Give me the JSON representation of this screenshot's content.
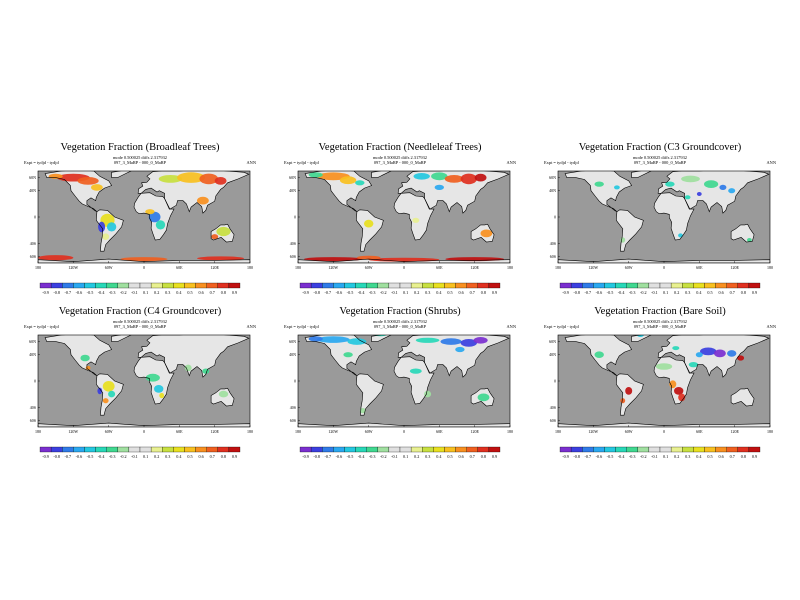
{
  "map_data": {
    "panel_meta": {
      "mode_line": "mode 0.500025 diffs 2.317932",
      "expt": "Expt = tydjd - tydjd",
      "run": "097_3_MaRP - 000_0_MaRP",
      "season": "ANN"
    },
    "lat_labels": [
      "60N",
      "40N",
      "0",
      "40S",
      "60S"
    ],
    "lon_labels": [
      "180",
      "120W",
      "60W",
      "0",
      "60E",
      "120E",
      "180"
    ],
    "colorbar": {
      "ticks": [
        "-0.9",
        "-0.8",
        "-0.7",
        "-0.6",
        "-0.5",
        "-0.4",
        "-0.3",
        "-0.2",
        "-0.1",
        "0.1",
        "0.2",
        "0.3",
        "0.4",
        "0.5",
        "0.6",
        "0.7",
        "0.8",
        "0.9"
      ],
      "colors": [
        "#7b2fd0",
        "#3b3fe0",
        "#2f7be8",
        "#2aa8f0",
        "#24c8e0",
        "#28d8b8",
        "#40d890",
        "#a0e0a0",
        "#e0e0e0",
        "#e0e0e0",
        "#e8f090",
        "#c8e040",
        "#e8e020",
        "#f8c020",
        "#f89020",
        "#f06020",
        "#e03020",
        "#c01010"
      ]
    },
    "colors": {
      "ocean": "#9a9a9a",
      "land_neutral": "#e6e6e6",
      "coast": "#000000"
    },
    "panels": [
      {
        "title": "Vegetation Fraction (Broadleaf Trees)",
        "variable": "broadleaf"
      },
      {
        "title": "Vegetation Fraction (Needleleaf Trees)",
        "variable": "needleleaf"
      },
      {
        "title": "Vegetation Fraction (C3 Groundcover)",
        "variable": "c3"
      },
      {
        "title": "Vegetation Fraction (C4 Groundcover)",
        "variable": "c4"
      },
      {
        "title": "Vegetation Fraction (Shrubs)",
        "variable": "shrubs"
      },
      {
        "title": "Vegetation Fraction (Bare Soil)",
        "variable": "bare"
      }
    ]
  }
}
